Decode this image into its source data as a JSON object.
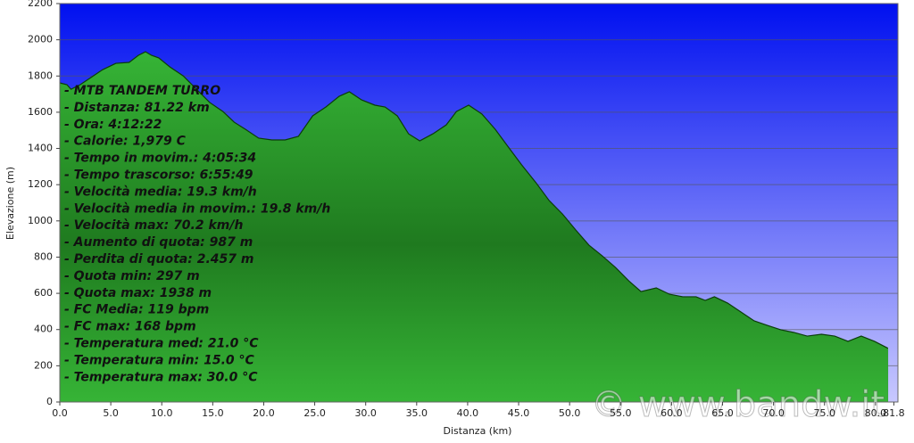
{
  "chart_data": {
    "type": "area",
    "x_label": "Distanza   (km)",
    "y_label": "Elevazione (m)",
    "color": "#2f9a2f",
    "grid": true,
    "xlim": [
      0,
      82.2
    ],
    "ylim": [
      0,
      2200
    ],
    "xticks": [
      {
        "value": 0,
        "label": "0.0"
      },
      {
        "value": 5,
        "label": "5.0"
      },
      {
        "value": 10,
        "label": "10.0"
      },
      {
        "value": 15,
        "label": "15.0"
      },
      {
        "value": 20,
        "label": "20.0"
      },
      {
        "value": 25,
        "label": "25.0"
      },
      {
        "value": 30,
        "label": "30.0"
      },
      {
        "value": 35,
        "label": "35.0"
      },
      {
        "value": 40,
        "label": "40.0"
      },
      {
        "value": 45,
        "label": "45.0"
      },
      {
        "value": 50,
        "label": "50.0"
      },
      {
        "value": 55,
        "label": "55.0"
      },
      {
        "value": 60,
        "label": "60.0"
      },
      {
        "value": 65,
        "label": "65.0"
      },
      {
        "value": 70,
        "label": "70.0"
      },
      {
        "value": 75,
        "label": "75.0"
      },
      {
        "value": 80,
        "label": "80.0"
      },
      81.8
    ],
    "yticks": [
      0,
      200,
      400,
      600,
      800,
      1000,
      1200,
      1400,
      1600,
      1800,
      2000,
      2200
    ],
    "x": [
      0,
      0.7,
      1.1,
      2.0,
      2.9,
      4.2,
      5.5,
      6.8,
      7.7,
      8.4,
      9.0,
      9.7,
      10.8,
      12.1,
      13.4,
      14.7,
      16.0,
      17.1,
      18.2,
      19.5,
      20.8,
      22.1,
      23.4,
      24.8,
      26.1,
      27.4,
      28.4,
      29.6,
      30.9,
      31.9,
      33.1,
      34.2,
      35.3,
      36.6,
      37.9,
      38.9,
      40.1,
      41.4,
      42.7,
      44.0,
      45.3,
      46.7,
      48.0,
      49.3,
      50.6,
      51.9,
      53.2,
      54.5,
      55.8,
      57.0,
      58.5,
      59.8,
      61.1,
      62.4,
      63.3,
      64.2,
      65.5,
      66.8,
      68.1,
      69.4,
      70.7,
      72.0,
      73.3,
      74.7,
      76.0,
      77.3,
      78.6,
      79.9,
      81.22
    ],
    "values": [
      1762,
      1752,
      1727,
      1752,
      1786,
      1835,
      1870,
      1875,
      1914,
      1934,
      1914,
      1900,
      1850,
      1801,
      1727,
      1654,
      1604,
      1545,
      1506,
      1457,
      1447,
      1447,
      1467,
      1580,
      1629,
      1688,
      1713,
      1668,
      1639,
      1629,
      1580,
      1481,
      1442,
      1481,
      1530,
      1604,
      1639,
      1590,
      1506,
      1407,
      1309,
      1211,
      1112,
      1038,
      950,
      866,
      807,
      743,
      669,
      610,
      630,
      595,
      581,
      581,
      561,
      581,
      546,
      497,
      448,
      423,
      399,
      384,
      364,
      374,
      364,
      335,
      364,
      335,
      297
    ],
    "annotations": [
      "- MTB TANDEM TURRO",
      "- Distanza: 81.22 km",
      "- Ora: 4:12:22",
      "- Calorie: 1,979 C",
      "- Tempo in movim.: 4:05:34",
      "- Tempo trascorso: 6:55:49",
      "- Velocità media: 19.3 km/h",
      "- Velocità media in movim.: 19.8 km/h",
      "- Velocità max: 70.2 km/h",
      "- Aumento di quota: 987 m",
      "- Perdita di quota: 2.457 m",
      "- Quota min: 297 m",
      "- Quota max: 1938 m",
      "- FC Media: 119 bpm",
      "- FC max: 168 bpm",
      "- Temperatura med: 21.0 °C",
      "- Temperatura min: 15.0 °C",
      "- Temperatura max: 30.0 °C"
    ],
    "watermark": "© www.bandw.it"
  }
}
